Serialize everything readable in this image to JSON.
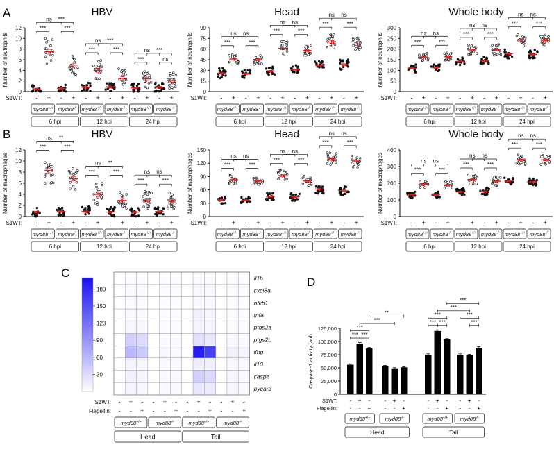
{
  "panel_letters": {
    "A": "A",
    "B": "B",
    "C": "C",
    "D": "D"
  },
  "s1wt_label": "S1WT:",
  "flagellin_label": "Flagellin:",
  "sig": {
    "ns": "ns",
    "s3": "***",
    "s2": "**"
  },
  "groups": {
    "wt": "myd88",
    "wt_sup": "+/+",
    "ko": "myd88",
    "ko_sup": "-/-"
  },
  "times": [
    "6 hpi",
    "12 hpi",
    "24 hpi"
  ],
  "tissues": [
    "Head",
    "Tail"
  ],
  "chart_data": [
    {
      "id": "A1",
      "type": "scatter",
      "title": "HBV",
      "ylabel": "Number of neutrophils",
      "ylim": [
        0,
        12
      ],
      "yticks": [
        0,
        2,
        4,
        6,
        8,
        10,
        12
      ],
      "means": [
        0.5,
        7.5,
        0.6,
        5.0,
        0.8,
        4.0,
        0.9,
        2.5,
        0.7,
        2.4,
        0.8,
        2.1
      ],
      "spread": [
        0.8,
        2.5,
        0.8,
        1.8,
        0.9,
        2.0,
        0.9,
        1.8,
        0.9,
        1.8,
        0.9,
        1.6
      ],
      "stats": [
        {
          "a": 0,
          "b": 1,
          "l": "***",
          "level": 0
        },
        {
          "a": 2,
          "b": 3,
          "l": "***",
          "level": 0
        },
        {
          "a": 0,
          "b": 2,
          "l": "ns",
          "level": 1
        },
        {
          "a": 1,
          "b": 3,
          "l": "***",
          "level": 1
        },
        {
          "a": 4,
          "b": 5,
          "l": "***",
          "level": 0
        },
        {
          "a": 6,
          "b": 7,
          "l": "***",
          "level": 0
        },
        {
          "a": 4,
          "b": 6,
          "l": "ns",
          "level": 1
        },
        {
          "a": 5,
          "b": 7,
          "l": "***",
          "level": 1
        },
        {
          "a": 8,
          "b": 9,
          "l": "***",
          "level": 0
        },
        {
          "a": 10,
          "b": 11,
          "l": "ns",
          "level": 0
        },
        {
          "a": 8,
          "b": 10,
          "l": "ns",
          "level": 1
        },
        {
          "a": 9,
          "b": 11,
          "l": "***",
          "level": 1
        }
      ]
    },
    {
      "id": "A2",
      "type": "scatter",
      "title": "Head",
      "ylabel": "Number of neutrophils",
      "ylim": [
        0,
        90
      ],
      "yticks": [
        0,
        15,
        30,
        45,
        60,
        75,
        90
      ],
      "means": [
        26,
        46,
        25,
        45,
        29,
        61,
        31,
        58,
        37,
        70,
        38,
        67
      ],
      "spread": [
        7,
        9,
        6,
        7,
        6,
        10,
        6,
        8,
        6,
        11,
        7,
        10
      ],
      "stats": [
        {
          "a": 0,
          "b": 1,
          "l": "***",
          "level": 0
        },
        {
          "a": 2,
          "b": 3,
          "l": "***",
          "level": 0
        },
        {
          "a": 0,
          "b": 2,
          "l": "ns",
          "level": 1
        },
        {
          "a": 1,
          "b": 3,
          "l": "ns",
          "level": 1
        },
        {
          "a": 4,
          "b": 5,
          "l": "***",
          "level": 0
        },
        {
          "a": 6,
          "b": 7,
          "l": "***",
          "level": 0
        },
        {
          "a": 4,
          "b": 6,
          "l": "ns",
          "level": 1
        },
        {
          "a": 5,
          "b": 7,
          "l": "ns",
          "level": 1
        },
        {
          "a": 8,
          "b": 9,
          "l": "***",
          "level": 0
        },
        {
          "a": 10,
          "b": 11,
          "l": "***",
          "level": 0
        },
        {
          "a": 8,
          "b": 10,
          "l": "ns",
          "level": 1
        },
        {
          "a": 9,
          "b": 11,
          "l": "ns",
          "level": 1
        }
      ]
    },
    {
      "id": "A3",
      "type": "scatter",
      "title": "Whole body",
      "ylabel": "Number of neutrophils",
      "ylim": [
        0,
        300
      ],
      "yticks": [
        0,
        50,
        100,
        150,
        200,
        250,
        300
      ],
      "means": [
        110,
        163,
        112,
        164,
        142,
        196,
        145,
        197,
        178,
        243,
        175,
        240
      ],
      "spread": [
        20,
        22,
        18,
        20,
        18,
        25,
        18,
        25,
        22,
        30,
        22,
        30
      ],
      "stats": [
        {
          "a": 0,
          "b": 1,
          "l": "***",
          "level": 0
        },
        {
          "a": 2,
          "b": 3,
          "l": "***",
          "level": 0
        },
        {
          "a": 0,
          "b": 2,
          "l": "ns",
          "level": 1
        },
        {
          "a": 1,
          "b": 3,
          "l": "ns",
          "level": 1
        },
        {
          "a": 4,
          "b": 5,
          "l": "***",
          "level": 0
        },
        {
          "a": 6,
          "b": 7,
          "l": "***",
          "level": 0
        },
        {
          "a": 4,
          "b": 6,
          "l": "ns",
          "level": 1
        },
        {
          "a": 5,
          "b": 7,
          "l": "ns",
          "level": 1
        },
        {
          "a": 8,
          "b": 9,
          "l": "***",
          "level": 0
        },
        {
          "a": 10,
          "b": 11,
          "l": "***",
          "level": 0
        },
        {
          "a": 8,
          "b": 10,
          "l": "ns",
          "level": 1
        },
        {
          "a": 9,
          "b": 11,
          "l": "ns",
          "level": 1
        }
      ]
    },
    {
      "id": "B1",
      "type": "scatter",
      "title": "HBV",
      "ylabel": "Number of macrophages",
      "ylim": [
        0,
        12
      ],
      "yticks": [
        0,
        2,
        4,
        6,
        8,
        10,
        12
      ],
      "means": [
        0.8,
        8.3,
        0.9,
        6.8,
        0.9,
        4.0,
        0.8,
        2.9,
        0.8,
        3.0,
        0.9,
        3.0
      ],
      "spread": [
        0.9,
        2.4,
        0.9,
        2.0,
        0.9,
        2.2,
        0.9,
        1.6,
        0.9,
        1.6,
        0.9,
        1.6
      ],
      "stats": [
        {
          "a": 0,
          "b": 1,
          "l": "***",
          "level": 0
        },
        {
          "a": 2,
          "b": 3,
          "l": "***",
          "level": 0
        },
        {
          "a": 0,
          "b": 2,
          "l": "ns",
          "level": 1
        },
        {
          "a": 1,
          "b": 3,
          "l": "**",
          "level": 1
        },
        {
          "a": 4,
          "b": 5,
          "l": "***",
          "level": 0
        },
        {
          "a": 6,
          "b": 7,
          "l": "***",
          "level": 0
        },
        {
          "a": 4,
          "b": 6,
          "l": "ns",
          "level": 1
        },
        {
          "a": 5,
          "b": 7,
          "l": "**",
          "level": 1
        },
        {
          "a": 8,
          "b": 9,
          "l": "***",
          "level": 0
        },
        {
          "a": 10,
          "b": 11,
          "l": "***",
          "level": 0
        },
        {
          "a": 8,
          "b": 10,
          "l": "ns",
          "level": 1
        },
        {
          "a": 9,
          "b": 11,
          "l": "ns",
          "level": 1
        }
      ]
    },
    {
      "id": "B2",
      "type": "scatter",
      "title": "Head",
      "ylabel": "Number of macrophages",
      "ylim": [
        0,
        150
      ],
      "yticks": [
        0,
        30,
        60,
        90,
        120,
        150
      ],
      "means": [
        38,
        83,
        37,
        80,
        45,
        92,
        44,
        80,
        62,
        130,
        58,
        125
      ],
      "spread": [
        9,
        10,
        7,
        8,
        9,
        12,
        9,
        12,
        10,
        14,
        10,
        14
      ],
      "stats": [
        {
          "a": 0,
          "b": 1,
          "l": "***",
          "level": 0
        },
        {
          "a": 2,
          "b": 3,
          "l": "***",
          "level": 0
        },
        {
          "a": 0,
          "b": 2,
          "l": "ns",
          "level": 1
        },
        {
          "a": 1,
          "b": 3,
          "l": "ns",
          "level": 1
        },
        {
          "a": 4,
          "b": 5,
          "l": "***",
          "level": 0
        },
        {
          "a": 6,
          "b": 7,
          "l": "***",
          "level": 0
        },
        {
          "a": 4,
          "b": 6,
          "l": "ns",
          "level": 1
        },
        {
          "a": 5,
          "b": 7,
          "l": "ns",
          "level": 1
        },
        {
          "a": 8,
          "b": 9,
          "l": "***",
          "level": 0
        },
        {
          "a": 10,
          "b": 11,
          "l": "***",
          "level": 0
        },
        {
          "a": 8,
          "b": 10,
          "l": "ns",
          "level": 1
        },
        {
          "a": 9,
          "b": 11,
          "l": "ns",
          "level": 1
        }
      ]
    },
    {
      "id": "B3",
      "type": "scatter",
      "title": "Whole body",
      "ylabel": "Number of macrophages",
      "ylim": [
        0,
        400
      ],
      "yticks": [
        0,
        100,
        200,
        300,
        400
      ],
      "means": [
        132,
        195,
        130,
        190,
        148,
        222,
        150,
        212,
        212,
        340,
        208,
        340
      ],
      "spread": [
        20,
        24,
        20,
        24,
        22,
        28,
        22,
        28,
        22,
        30,
        22,
        30
      ],
      "stats": [
        {
          "a": 0,
          "b": 1,
          "l": "***",
          "level": 0
        },
        {
          "a": 2,
          "b": 3,
          "l": "***",
          "level": 0
        },
        {
          "a": 0,
          "b": 2,
          "l": "ns",
          "level": 1
        },
        {
          "a": 1,
          "b": 3,
          "l": "ns",
          "level": 1
        },
        {
          "a": 4,
          "b": 5,
          "l": "***",
          "level": 0
        },
        {
          "a": 6,
          "b": 7,
          "l": "***",
          "level": 0
        },
        {
          "a": 4,
          "b": 6,
          "l": "ns",
          "level": 1
        },
        {
          "a": 5,
          "b": 7,
          "l": "ns",
          "level": 1
        },
        {
          "a": 8,
          "b": 9,
          "l": "***",
          "level": 0
        },
        {
          "a": 10,
          "b": 11,
          "l": "***",
          "level": 0
        },
        {
          "a": 8,
          "b": 10,
          "l": "ns",
          "level": 1
        },
        {
          "a": 9,
          "b": 11,
          "l": "ns",
          "level": 1
        }
      ]
    },
    {
      "id": "C",
      "type": "heatmap",
      "rows": [
        "il1b",
        "cxcl8a",
        "nfkb1",
        "tnfa",
        "ptgs2a",
        "ptgs2b",
        "ifng",
        "il10",
        "caspa",
        "pycard"
      ],
      "colorbar": {
        "min": 0,
        "max": 200,
        "ticks": [
          30,
          60,
          90,
          120,
          150,
          180
        ],
        "low": "#ffffff",
        "high": "#1a12f0"
      },
      "s1wt": [
        "-",
        "+",
        "-",
        "-",
        "+",
        "-",
        "-",
        "+",
        "-",
        "-",
        "+",
        "-"
      ],
      "flagellin": [
        "-",
        "-",
        "+",
        "-",
        "-",
        "+",
        "-",
        "-",
        "+",
        "-",
        "-",
        "+"
      ],
      "values": [
        [
          0,
          3,
          3,
          0,
          3,
          3,
          0,
          4,
          4,
          0,
          3,
          3
        ],
        [
          0,
          5,
          5,
          0,
          4,
          4,
          0,
          6,
          6,
          0,
          4,
          4
        ],
        [
          0,
          4,
          4,
          0,
          3,
          3,
          0,
          5,
          5,
          0,
          3,
          3
        ],
        [
          0,
          6,
          5,
          0,
          3,
          3,
          0,
          12,
          8,
          0,
          3,
          3
        ],
        [
          0,
          8,
          7,
          0,
          3,
          3,
          0,
          10,
          8,
          0,
          4,
          4
        ],
        [
          0,
          40,
          30,
          0,
          5,
          5,
          0,
          25,
          18,
          0,
          6,
          5
        ],
        [
          0,
          60,
          45,
          0,
          8,
          6,
          0,
          190,
          160,
          0,
          12,
          10
        ],
        [
          0,
          10,
          8,
          0,
          5,
          5,
          0,
          14,
          12,
          0,
          6,
          6
        ],
        [
          0,
          12,
          10,
          0,
          5,
          5,
          0,
          40,
          30,
          0,
          8,
          6
        ],
        [
          0,
          10,
          8,
          0,
          6,
          5,
          0,
          20,
          16,
          0,
          8,
          6
        ]
      ]
    },
    {
      "id": "D",
      "type": "bar",
      "ylabel": "Caspase-1 activity (auf)",
      "ylim": [
        0,
        125000
      ],
      "yticks": [
        "0",
        "25,000",
        "50,000",
        "75,000",
        "100,000",
        "125,000"
      ],
      "yvals": [
        0,
        25000,
        50000,
        75000,
        100000,
        125000
      ],
      "values": [
        56000,
        96000,
        87000,
        53000,
        49000,
        51000,
        75000,
        120000,
        104000,
        75000,
        74000,
        88000
      ],
      "errors": [
        1500,
        2000,
        1500,
        1500,
        1200,
        1200,
        1500,
        2000,
        1500,
        1500,
        1500,
        2000
      ],
      "s1wt": [
        "-",
        "+",
        "-",
        "-",
        "+",
        "-",
        "-",
        "+",
        "-",
        "-",
        "+",
        "-"
      ],
      "flagellin": [
        "-",
        "-",
        "+",
        "-",
        "-",
        "+",
        "-",
        "-",
        "+",
        "-",
        "-",
        "+"
      ],
      "stats": [
        {
          "a": 0,
          "b": 1,
          "l": "***",
          "level": 0
        },
        {
          "a": 1,
          "b": 2,
          "l": "***",
          "level": 0
        },
        {
          "a": 0,
          "b": 2,
          "l": "***",
          "level": 1
        },
        {
          "a": 1,
          "b": 4,
          "l": "***",
          "level": 2
        },
        {
          "a": 2,
          "b": 5,
          "l": "**",
          "level": 3
        },
        {
          "a": 6,
          "b": 7,
          "l": "***",
          "level": 0
        },
        {
          "a": 7,
          "b": 8,
          "l": "***",
          "level": 0
        },
        {
          "a": 6,
          "b": 8,
          "l": "***",
          "level": 1
        },
        {
          "a": 10,
          "b": 11,
          "l": "***",
          "level": 0
        },
        {
          "a": 9,
          "b": 11,
          "l": "***",
          "level": 1
        },
        {
          "a": 7,
          "b": 10,
          "l": "***",
          "level": 2
        },
        {
          "a": 8,
          "b": 11,
          "l": "***",
          "level": 3
        }
      ]
    }
  ]
}
